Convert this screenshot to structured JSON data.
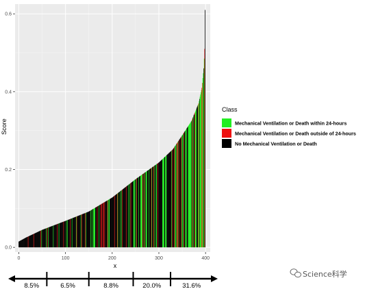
{
  "chart_data": {
    "type": "bar",
    "xlabel": "x",
    "ylabel": "Score",
    "xlim": [
      -8,
      410
    ],
    "ylim": [
      -0.012,
      0.625
    ],
    "x_ticks": [
      0,
      100,
      200,
      300,
      400
    ],
    "y_ticks": [
      0.0,
      0.2,
      0.4,
      0.6
    ],
    "y_tick_labels": [
      "0.0",
      "0.2",
      "0.4",
      "0.6"
    ],
    "n_bars": 400,
    "score_curve": [
      [
        0,
        0.015
      ],
      [
        15,
        0.025
      ],
      [
        50,
        0.045
      ],
      [
        100,
        0.068
      ],
      [
        150,
        0.092
      ],
      [
        200,
        0.128
      ],
      [
        250,
        0.175
      ],
      [
        300,
        0.218
      ],
      [
        330,
        0.252
      ],
      [
        350,
        0.288
      ],
      [
        370,
        0.325
      ],
      [
        385,
        0.37
      ],
      [
        392,
        0.41
      ],
      [
        396,
        0.46
      ],
      [
        398,
        0.51
      ],
      [
        399,
        0.61
      ]
    ],
    "grid": true,
    "legend_position": "right",
    "legend": {
      "title": "Class",
      "entries": [
        {
          "label": "Mechanical Ventilation or Death within 24-hours",
          "color": "#22ee22"
        },
        {
          "label": "Mechanical Ventilation or Death outside of 24-hours",
          "color": "#ee1111"
        },
        {
          "label": "No Mechanical Ventilation or Death",
          "color": "#000000"
        }
      ]
    },
    "class_colors": {
      "within_24h": "#22ee22",
      "outside_24h": "#ee1111",
      "none": "#000000"
    },
    "bands": {
      "boundaries": [
        60,
        150,
        245,
        325
      ],
      "labels": [
        "8.5%",
        "6.5%",
        "8.8%",
        "20.0%",
        "31.6%"
      ]
    }
  },
  "watermark": "Science科学"
}
